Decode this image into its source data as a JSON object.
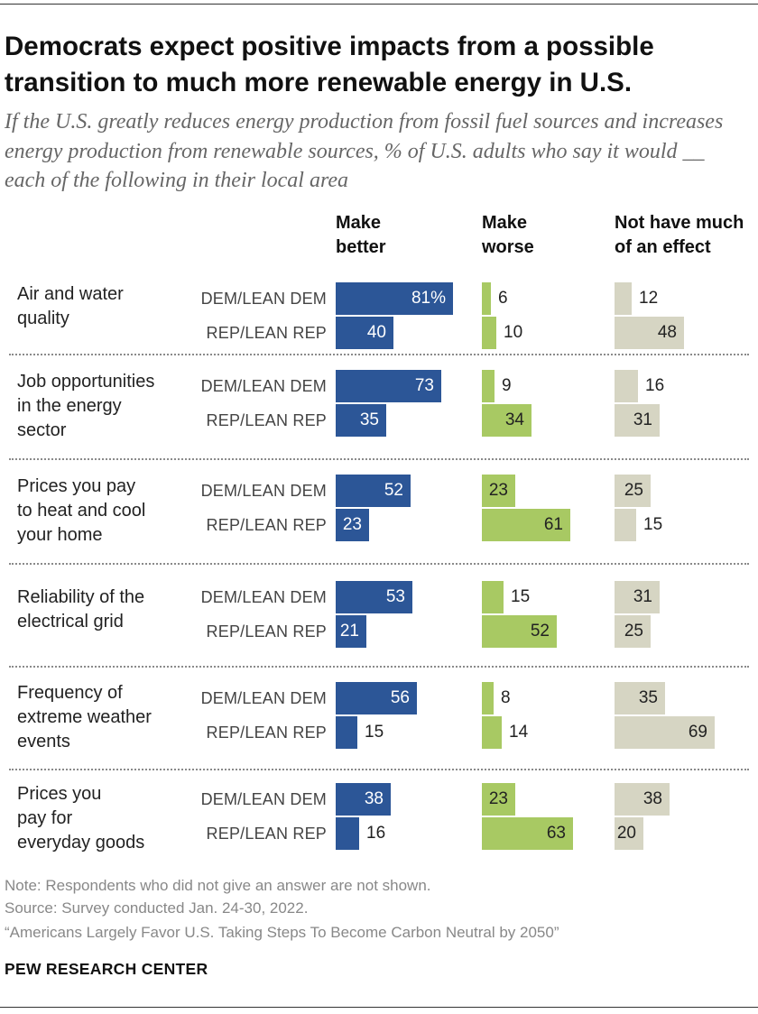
{
  "title": "Democrats expect positive impacts from a possible transition to much more renewable energy in U.S.",
  "subtitle": "If the U.S. greatly reduces energy production from fossil fuel sources and increases energy production from renewable sources, % of U.S. adults who say it would __ each of the following in their local area",
  "columns": {
    "make_better": [
      "Make",
      "better"
    ],
    "make_worse": [
      "Make",
      "worse"
    ],
    "no_effect": [
      "Not have much",
      "of an effect"
    ]
  },
  "groups": [
    "DEM/LEAN DEM",
    "REP/LEAN REP"
  ],
  "chart_data": {
    "type": "bar",
    "orientation": "horizontal",
    "percent_suffix_on_first_value": true,
    "colors": {
      "Make better": "#2c5697",
      "Make worse": "#a8c963",
      "Not have much of an effect": "#d6d5c3"
    },
    "categories": [
      [
        "Air and water",
        "quality"
      ],
      [
        "Job opportunities",
        "in the energy",
        "sector"
      ],
      [
        "Prices you pay",
        "to heat and cool",
        "your home"
      ],
      [
        "Reliability of the",
        "electrical grid"
      ],
      [
        "Frequency of",
        "extreme weather",
        "events"
      ],
      [
        "Prices you",
        "pay for",
        "everyday goods"
      ]
    ],
    "series": [
      {
        "name": "Make better",
        "group_values": [
          [
            81,
            40
          ],
          [
            73,
            35
          ],
          [
            52,
            23
          ],
          [
            53,
            21
          ],
          [
            56,
            15
          ],
          [
            38,
            16
          ]
        ]
      },
      {
        "name": "Make worse",
        "group_values": [
          [
            6,
            10
          ],
          [
            9,
            34
          ],
          [
            23,
            61
          ],
          [
            15,
            52
          ],
          [
            8,
            14
          ],
          [
            23,
            63
          ]
        ]
      },
      {
        "name": "Not have much of an effect",
        "group_values": [
          [
            12,
            48
          ],
          [
            16,
            31
          ],
          [
            25,
            15
          ],
          [
            31,
            25
          ],
          [
            35,
            69
          ],
          [
            38,
            20
          ]
        ]
      }
    ]
  },
  "notes": {
    "note": "Note: Respondents who did not give an answer are not shown.",
    "source": "Source: Survey conducted Jan. 24-30, 2022.",
    "report": "“Americans Largely Favor U.S. Taking Steps To Become Carbon Neutral by 2050”"
  },
  "brand": "PEW RESEARCH CENTER"
}
